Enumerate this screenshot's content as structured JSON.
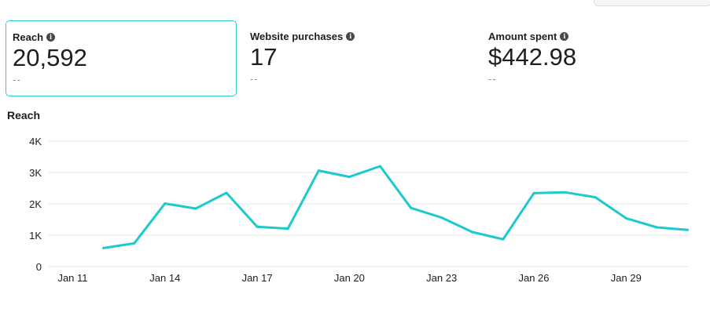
{
  "metrics": [
    {
      "title": "Reach",
      "value": "20,592",
      "compare": "--"
    },
    {
      "title": "Website purchases",
      "value": "17",
      "compare": "--"
    },
    {
      "title": "Amount spent",
      "value": "$442.98",
      "compare": "--"
    }
  ],
  "info_icon": "info-icon",
  "colors": {
    "accent": "#2bcfd2",
    "line": "#1dc9cc",
    "grid": "#e4e6eb",
    "text": "#1c1e21",
    "muted": "#8d949e"
  },
  "chart_data": {
    "type": "line",
    "title": "Reach",
    "xlabel": "",
    "ylabel": "",
    "ylim": [
      0,
      4000
    ],
    "yticks": [
      0,
      1000,
      2000,
      3000,
      4000
    ],
    "ytick_labels": [
      "0",
      "1K",
      "2K",
      "3K",
      "4K"
    ],
    "grid": true,
    "x": [
      "Jan 11",
      "Jan 12",
      "Jan 13",
      "Jan 14",
      "Jan 15",
      "Jan 16",
      "Jan 17",
      "Jan 18",
      "Jan 19",
      "Jan 20",
      "Jan 21",
      "Jan 22",
      "Jan 23",
      "Jan 24",
      "Jan 25",
      "Jan 26",
      "Jan 27",
      "Jan 28",
      "Jan 29",
      "Jan 30",
      "Jan 31"
    ],
    "xtick_labels": [
      "Jan 11",
      "Jan 14",
      "Jan 17",
      "Jan 20",
      "Jan 23",
      "Jan 26",
      "Jan 29"
    ],
    "series": [
      {
        "values": [
          null,
          590,
          740,
          2010,
          1850,
          2350,
          1270,
          1210,
          3060,
          2860,
          3200,
          1870,
          1560,
          1100,
          870,
          2340,
          2370,
          2210,
          1540,
          1250,
          1170
        ]
      }
    ]
  }
}
